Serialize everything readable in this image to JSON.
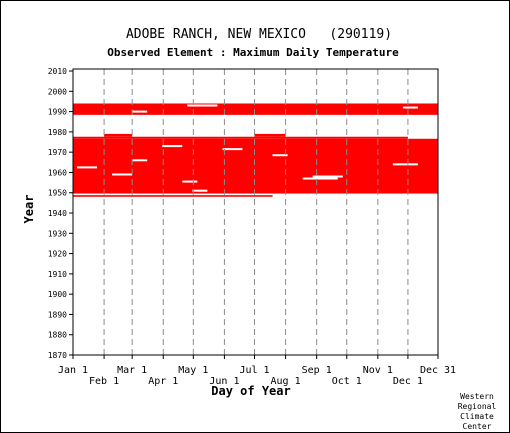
{
  "chart_data": {
    "type": "heatmap",
    "title": "ADOBE RANCH, NEW MEXICO   (290119)",
    "subtitle": "Observed Element : Maximum Daily Temperature",
    "xlabel": "Day of Year",
    "ylabel": "Year",
    "x_tick_labels": [
      "Jan 1",
      "Feb 1",
      "Mar 1",
      "Apr 1",
      "May 1",
      "Jun 1",
      "Jul 1",
      "Aug 1",
      "Sep 1",
      "Oct 1",
      "Nov 1",
      "Dec 1",
      "Dec 31"
    ],
    "x_tick_days": [
      1,
      32,
      60,
      91,
      121,
      152,
      182,
      213,
      244,
      274,
      305,
      335,
      365
    ],
    "y_ticks": [
      1870,
      1880,
      1890,
      1900,
      1910,
      1920,
      1930,
      1940,
      1950,
      1960,
      1970,
      1980,
      1990,
      2000,
      2010
    ],
    "ylim": [
      1870,
      2011
    ],
    "xlim": [
      1,
      365
    ],
    "data_color": "#ff0000",
    "grid": true,
    "credit": [
      "Western",
      "Regional",
      "Climate",
      "Center"
    ],
    "observed_periods": [
      {
        "year_from": 1948.0,
        "year_to": 1948.8,
        "day_from": 1,
        "day_to": 200
      },
      {
        "year_from": 1949.6,
        "year_to": 1976.6,
        "day_from": 1,
        "day_to": 365
      },
      {
        "year_from": 1976.6,
        "year_to": 1977.6,
        "day_from": 1,
        "day_to": 335
      },
      {
        "year_from": 1977.6,
        "year_to": 1979.0,
        "day_from": 32,
        "day_to": 60
      },
      {
        "year_from": 1977.6,
        "year_to": 1979.0,
        "day_from": 182,
        "day_to": 213
      },
      {
        "year_from": 1988.4,
        "year_to": 1994.0,
        "day_from": 1,
        "day_to": 365
      }
    ],
    "missing_day_streaks": [
      {
        "year": 1951.0,
        "day_from": 120,
        "day_to": 135
      },
      {
        "year": 1955.5,
        "day_from": 110,
        "day_to": 125
      },
      {
        "year": 1957.0,
        "day_from": 230,
        "day_to": 265
      },
      {
        "year": 1958.0,
        "day_from": 240,
        "day_to": 270
      },
      {
        "year": 1959.0,
        "day_from": 40,
        "day_to": 60
      },
      {
        "year": 1962.5,
        "day_from": 5,
        "day_to": 25
      },
      {
        "year": 1964.0,
        "day_from": 320,
        "day_to": 345
      },
      {
        "year": 1966.0,
        "day_from": 60,
        "day_to": 75
      },
      {
        "year": 1968.5,
        "day_from": 200,
        "day_to": 215
      },
      {
        "year": 1971.5,
        "day_from": 150,
        "day_to": 170
      },
      {
        "year": 1973.0,
        "day_from": 90,
        "day_to": 110
      },
      {
        "year": 1990.0,
        "day_from": 60,
        "day_to": 75
      },
      {
        "year": 1993.0,
        "day_from": 115,
        "day_to": 145
      },
      {
        "year": 1992.0,
        "day_from": 330,
        "day_to": 345
      }
    ]
  }
}
